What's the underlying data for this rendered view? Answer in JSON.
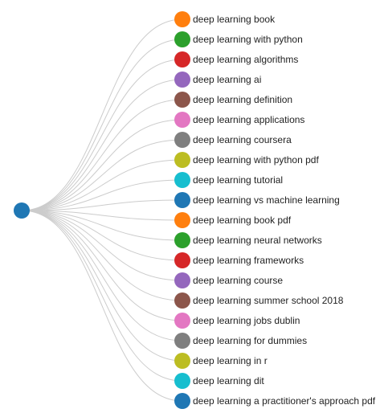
{
  "root": {
    "color": "#1f77b4"
  },
  "link_color": "#cccccc",
  "label_color": "#222222",
  "palette": [
    "#ff7f0e",
    "#2ca02c",
    "#d62728",
    "#9467bd",
    "#8c564b",
    "#e377c2",
    "#7f7f7f",
    "#bcbd22",
    "#17becf",
    "#1f77b4"
  ],
  "leaves": [
    {
      "label": "deep learning book",
      "color": "#ff7f0e"
    },
    {
      "label": "deep learning with python",
      "color": "#2ca02c"
    },
    {
      "label": "deep learning algorithms",
      "color": "#d62728"
    },
    {
      "label": "deep learning ai",
      "color": "#9467bd"
    },
    {
      "label": "deep learning definition",
      "color": "#8c564b"
    },
    {
      "label": "deep learning applications",
      "color": "#e377c2"
    },
    {
      "label": "deep learning coursera",
      "color": "#7f7f7f"
    },
    {
      "label": "deep learning with python pdf",
      "color": "#bcbd22"
    },
    {
      "label": "deep learning tutorial",
      "color": "#17becf"
    },
    {
      "label": "deep learning vs machine learning",
      "color": "#1f77b4"
    },
    {
      "label": "deep learning book pdf",
      "color": "#ff7f0e"
    },
    {
      "label": "deep learning neural networks",
      "color": "#2ca02c"
    },
    {
      "label": "deep learning frameworks",
      "color": "#d62728"
    },
    {
      "label": "deep learning course",
      "color": "#9467bd"
    },
    {
      "label": "deep learning summer school 2018",
      "color": "#8c564b"
    },
    {
      "label": "deep learning jobs dublin",
      "color": "#e377c2"
    },
    {
      "label": "deep learning for dummies",
      "color": "#7f7f7f"
    },
    {
      "label": "deep learning in r",
      "color": "#bcbd22"
    },
    {
      "label": "deep learning dit",
      "color": "#17becf"
    },
    {
      "label": "deep learning a practitioner's approach pdf",
      "color": "#1f77b4"
    }
  ]
}
